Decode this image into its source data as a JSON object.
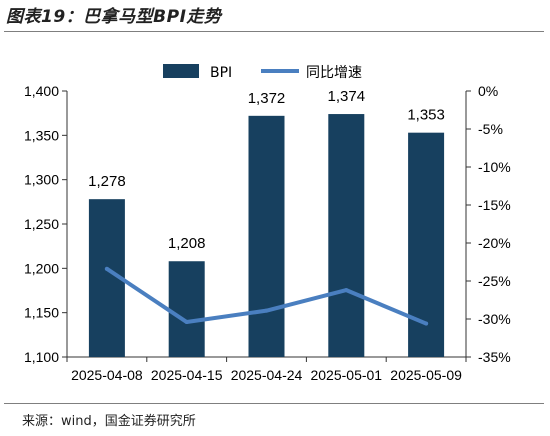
{
  "header": {
    "title": "图表19：巴拿马型BPI走势"
  },
  "footer": {
    "source": "来源：wind，国金证券研究所"
  },
  "colors": {
    "bar": "#17405f",
    "line": "#4a7fc0",
    "axis": "#333333"
  },
  "chart_data": {
    "type": "bar",
    "categories": [
      "2025-04-08",
      "2025-04-15",
      "2025-04-24",
      "2025-05-01",
      "2025-05-09"
    ],
    "series": [
      {
        "name": "BPI",
        "type": "bar",
        "axis": "left",
        "values": [
          1278,
          1208,
          1372,
          1374,
          1353
        ]
      },
      {
        "name": "同比增速",
        "type": "line",
        "axis": "right",
        "values": [
          -23.4,
          -30.4,
          -28.9,
          -26.2,
          -30.6
        ]
      }
    ],
    "data_labels": [
      "1,278",
      "1,208",
      "1,372",
      "1,374",
      "1,353"
    ],
    "left_axis": {
      "ylim": [
        1100,
        1400
      ],
      "ticks": [
        "1,100",
        "1,150",
        "1,200",
        "1,250",
        "1,300",
        "1,350",
        "1,400"
      ]
    },
    "right_axis": {
      "ylim": [
        -35,
        0
      ],
      "ticks": [
        "-35%",
        "-30%",
        "-25%",
        "-20%",
        "-15%",
        "-10%",
        "-5%",
        "0%"
      ]
    },
    "legend_position": "top-center",
    "grid": false
  }
}
